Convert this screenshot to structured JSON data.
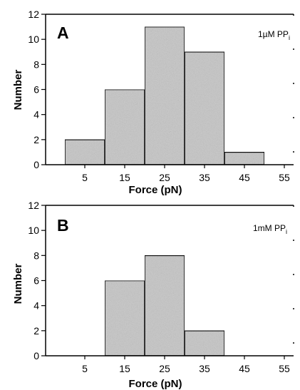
{
  "chart_data": [
    {
      "type": "bar",
      "panel": "A",
      "annotation": "1µM PP",
      "annotation_sub": "i",
      "xlabel": "Force (pN)",
      "ylabel": "Number",
      "categories": [
        "5",
        "15",
        "25",
        "35",
        "45",
        "55"
      ],
      "values": [
        2,
        6,
        11,
        9,
        1,
        0
      ],
      "ylim": [
        0,
        12
      ],
      "yticks": [
        "0",
        "2",
        "4",
        "6",
        "8",
        "10",
        "12"
      ],
      "grid": false,
      "bar_color": "#c8c8c8"
    },
    {
      "type": "bar",
      "panel": "B",
      "annotation": "1mM PP",
      "annotation_sub": "i",
      "xlabel": "Force (pN)",
      "ylabel": "Number",
      "categories": [
        "5",
        "15",
        "25",
        "35",
        "45",
        "55"
      ],
      "values": [
        0,
        6,
        8,
        2,
        0,
        0
      ],
      "ylim": [
        0,
        12
      ],
      "yticks": [
        "0",
        "2",
        "4",
        "6",
        "8",
        "10",
        "12"
      ],
      "grid": false,
      "bar_color": "#c8c8c8"
    }
  ]
}
